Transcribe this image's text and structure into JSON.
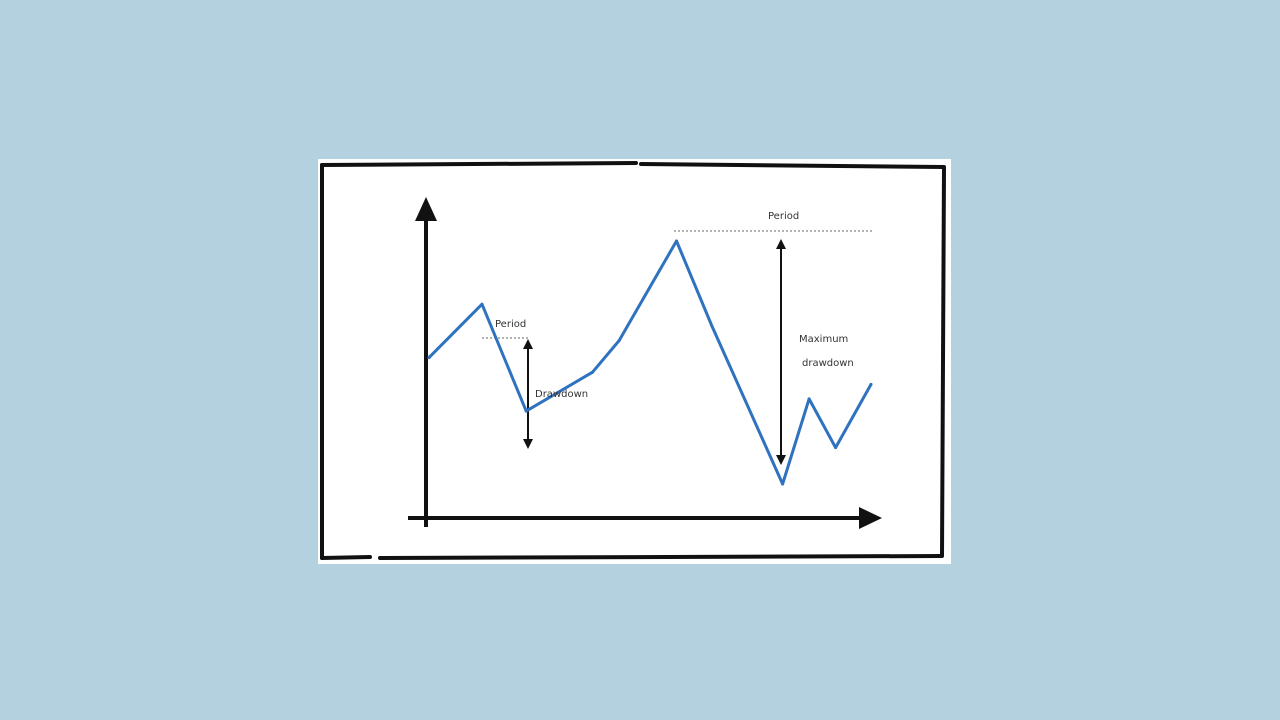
{
  "colors": {
    "page_background": "#b4d1df",
    "card_background": "#ffffff",
    "ink": "#111111",
    "line": "#2f72bf"
  },
  "annotations": {
    "peak_small": "Period",
    "drawdown": "Drawdown",
    "peak_large": "Period",
    "max_drawdown_line1": "Maximum",
    "max_drawdown_line2": "drawdown"
  },
  "chart_data": {
    "type": "line",
    "series": [
      {
        "values": [
          [
            0,
            0.52
          ],
          [
            0.12,
            0.74
          ],
          [
            0.22,
            0.3
          ],
          [
            0.37,
            0.46
          ],
          [
            0.43,
            0.59
          ],
          [
            0.56,
            1.0
          ],
          [
            0.64,
            0.65
          ],
          [
            0.8,
            0.0
          ],
          [
            0.86,
            0.35
          ],
          [
            0.92,
            0.15
          ],
          [
            1.0,
            0.41
          ]
        ]
      }
    ]
  }
}
